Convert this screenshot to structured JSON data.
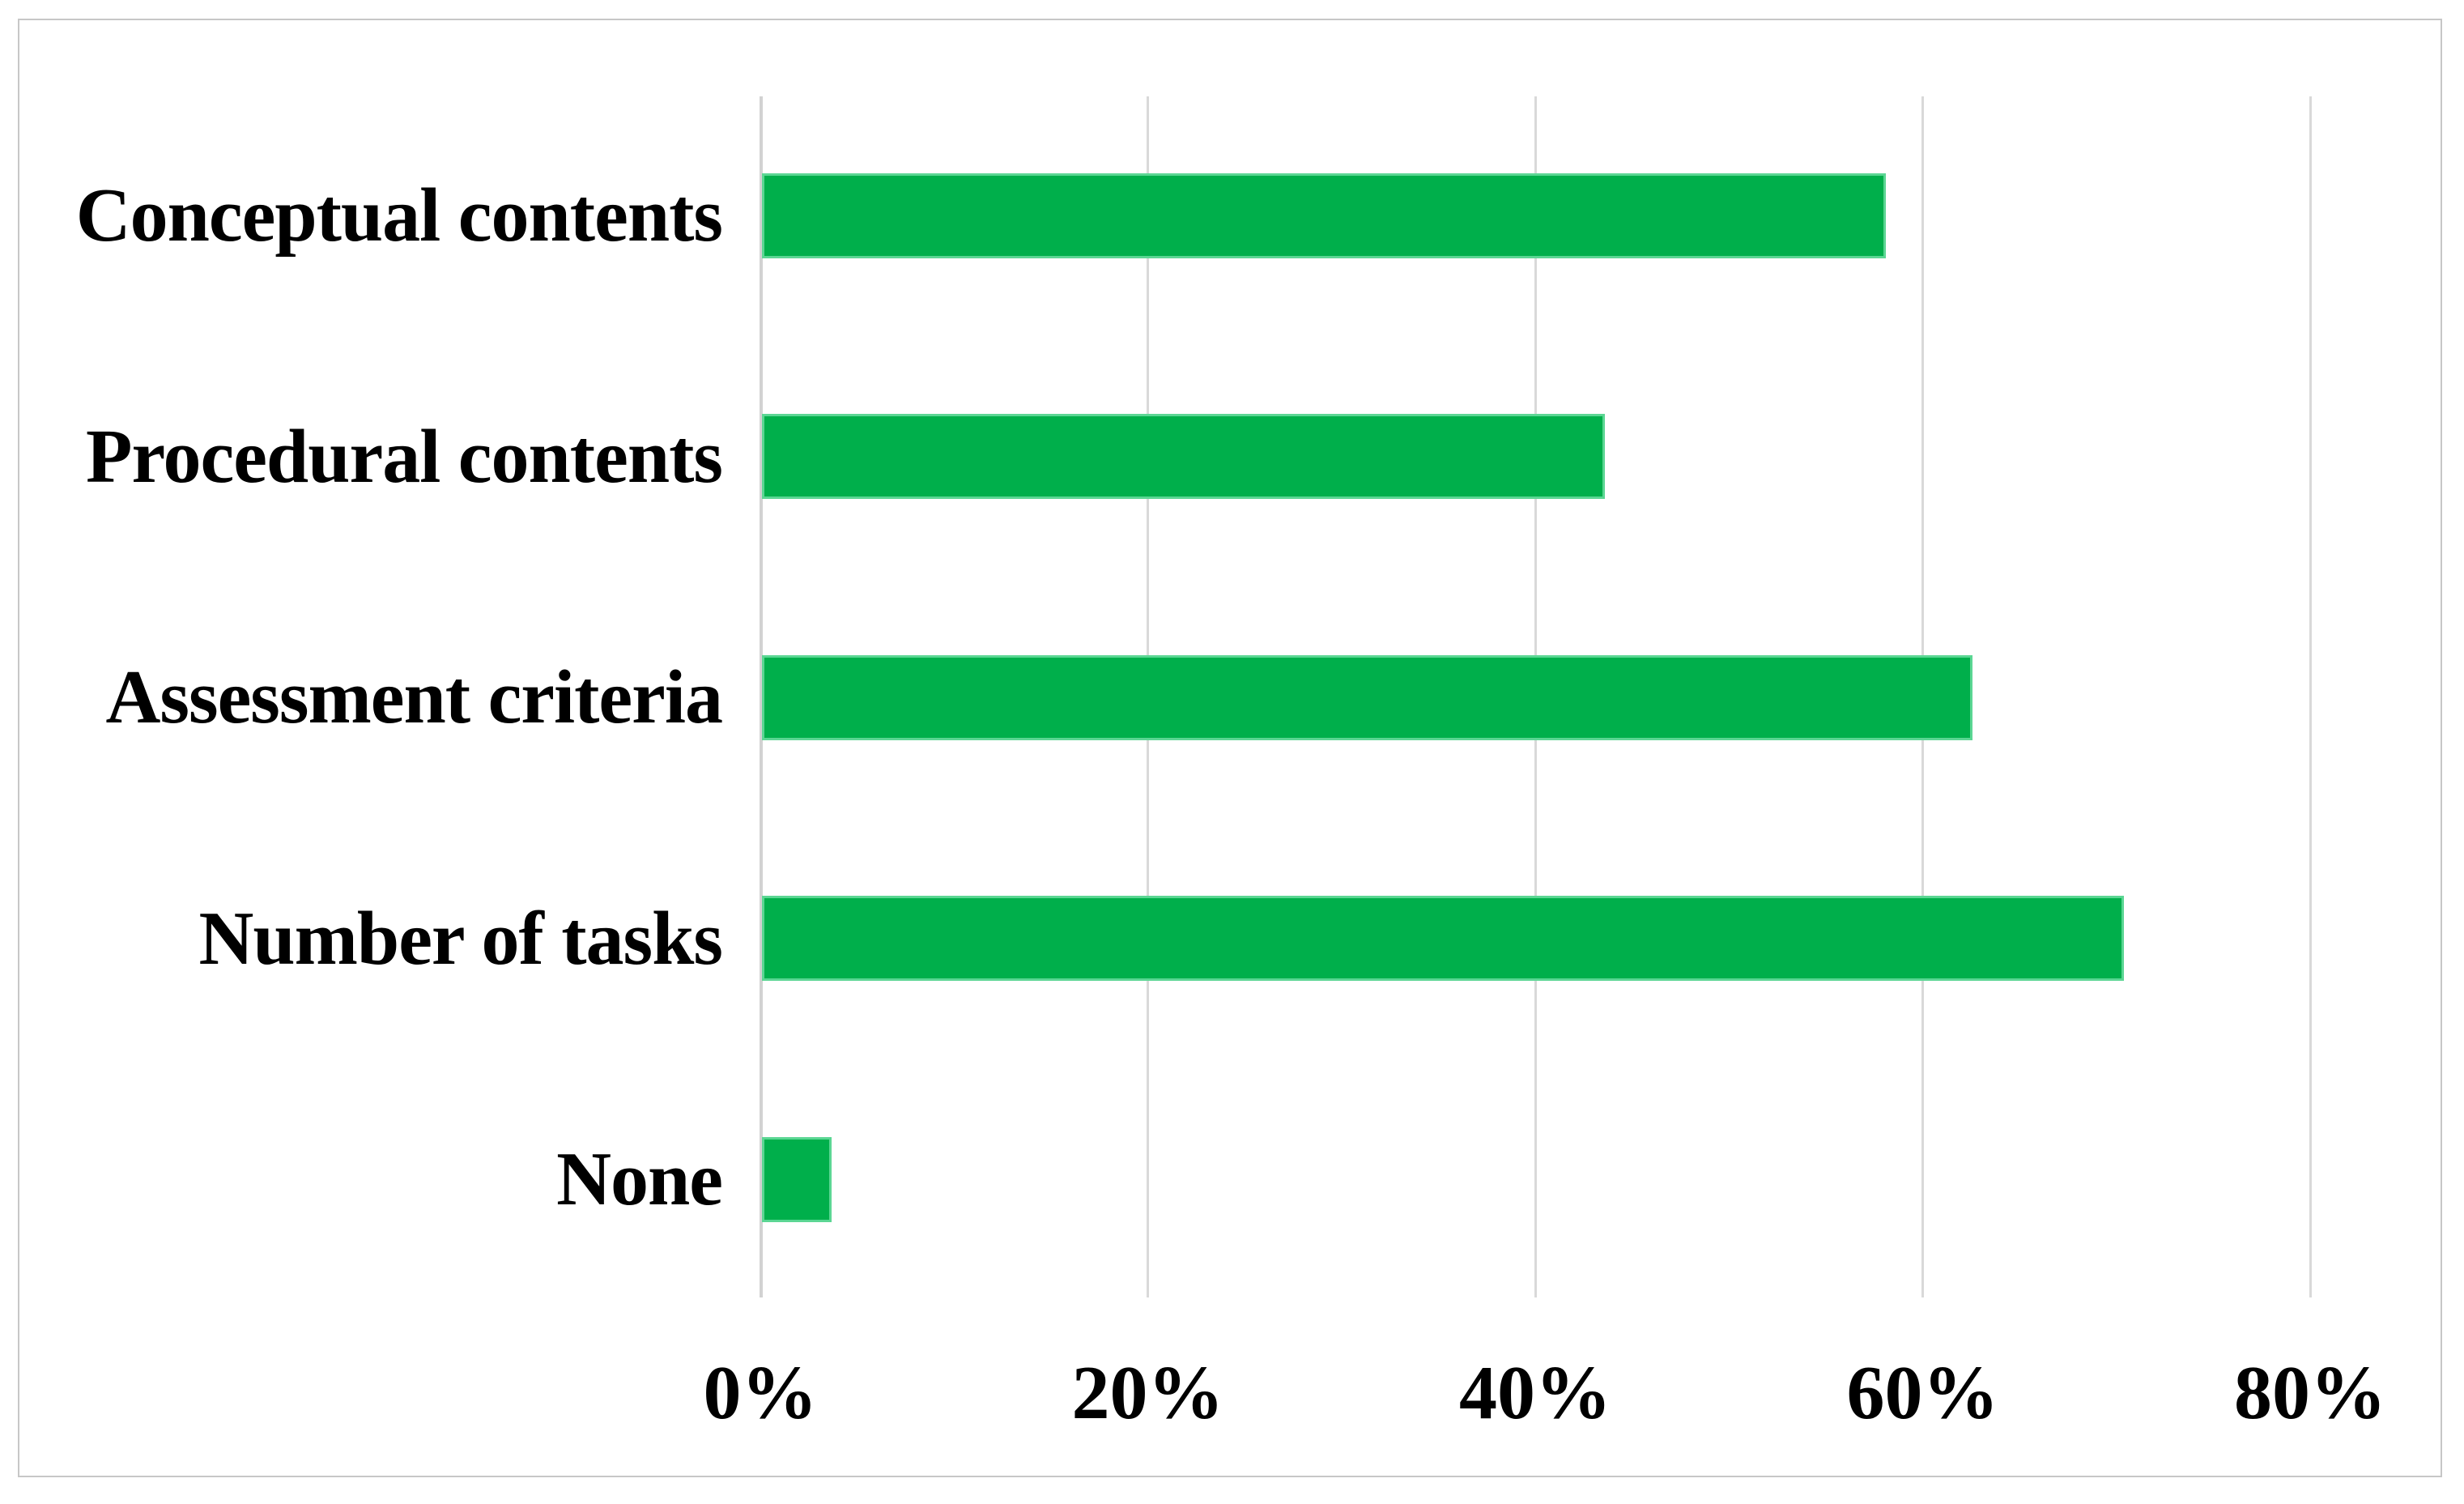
{
  "figure": {
    "background_color": "#ffffff",
    "border_color": "#c7c7c7"
  },
  "chart_data": {
    "type": "bar",
    "orientation": "horizontal",
    "title": "",
    "xlabel": "",
    "ylabel": "",
    "categories": [
      "Conceptual contents",
      "Procedural contents",
      "Assessment criteria",
      "Number of tasks",
      "None"
    ],
    "values": [
      58,
      43.5,
      62.5,
      70.3,
      3.6
    ],
    "value_unit": "percent",
    "x_tick_labels": [
      "0%",
      "20%",
      "40%",
      "60%",
      "80%"
    ],
    "x_tick_values": [
      0,
      20,
      40,
      60,
      80
    ],
    "x_axis_range": [
      0,
      80
    ],
    "grid": "vertical-gridlines-on",
    "legend": "none",
    "bar_fill_color": "#00AF4B",
    "bar_border_color": "#5BD693",
    "gridline_color": "#d9d9d9",
    "axis_line_color": "#d2d2d2",
    "text_color": "#000000"
  }
}
